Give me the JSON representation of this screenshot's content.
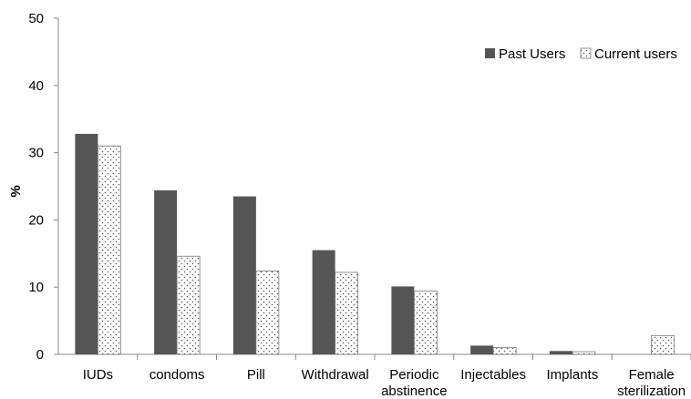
{
  "chart_data": {
    "type": "bar",
    "title": "",
    "xlabel": "",
    "ylabel": "%",
    "ylim": [
      0,
      50
    ],
    "yticks": [
      0,
      10,
      20,
      30,
      40,
      50
    ],
    "grid": false,
    "legend_position": "top-right",
    "categories": [
      [
        "IUDs"
      ],
      [
        "condoms"
      ],
      [
        "Pill"
      ],
      [
        "Withdrawal"
      ],
      [
        "Periodic",
        "abstinence"
      ],
      [
        "Injectables"
      ],
      [
        "Implants"
      ],
      [
        "Female",
        "sterilization"
      ]
    ],
    "series": [
      {
        "name": "Past Users",
        "color": "#555555",
        "pattern": "solid",
        "values": [
          32.8,
          24.4,
          23.5,
          15.5,
          10.1,
          1.3,
          0.5,
          0
        ]
      },
      {
        "name": "Current users",
        "color": "#ffffff",
        "pattern": "dots",
        "values": [
          31.0,
          14.6,
          12.4,
          12.2,
          9.4,
          1.0,
          0.4,
          2.8
        ]
      }
    ]
  }
}
